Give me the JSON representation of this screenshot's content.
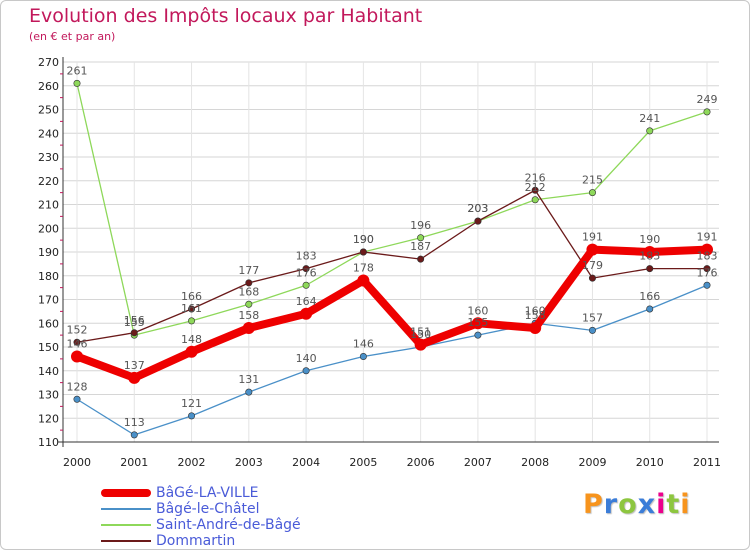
{
  "header": {
    "title": "Evolution des Impôts locaux par Habitant",
    "subtitle": "(en € et par an)"
  },
  "chart_data": {
    "type": "line",
    "title": "Evolution des Impôts locaux par Habitant",
    "subtitle": "(en € et par an)",
    "xlabel": "",
    "ylabel": "",
    "ylim": [
      110,
      270
    ],
    "yticks": [
      110,
      120,
      130,
      140,
      150,
      160,
      170,
      180,
      190,
      200,
      210,
      220,
      230,
      240,
      250,
      260,
      270
    ],
    "categories": [
      "2000",
      "2001",
      "2002",
      "2003",
      "2004",
      "2005",
      "2006",
      "2007",
      "2008",
      "2009",
      "2010",
      "2011"
    ],
    "grid": true,
    "legend_position": "bottom-left",
    "series": [
      {
        "name": "Bâgé-le-Châtel",
        "color": "#4a90c8",
        "values": [
          128,
          113,
          121,
          131,
          140,
          146,
          150,
          155,
          160,
          157,
          166,
          176
        ]
      },
      {
        "name": "Saint-André-de-Bâgé",
        "color": "#8ed85a",
        "values": [
          261,
          155,
          161,
          168,
          176,
          190,
          196,
          203,
          212,
          215,
          241,
          249
        ]
      },
      {
        "name": "Dommartin",
        "color": "#6b1a1a",
        "values": [
          152,
          156,
          166,
          177,
          183,
          190,
          187,
          203,
          216,
          179,
          183,
          183
        ]
      },
      {
        "name": "BâGé-LA-VILLE",
        "color": "#ee0000",
        "values": [
          146,
          137,
          148,
          158,
          164,
          178,
          151,
          160,
          158,
          191,
          190,
          191
        ]
      }
    ]
  },
  "legend": {
    "items": [
      {
        "label": "BâGé-LA-VILLE",
        "color": "#ee0000"
      },
      {
        "label": "Bâgé-le-Châtel",
        "color": "#4a90c8"
      },
      {
        "label": "Saint-André-de-Bâgé",
        "color": "#8ed85a"
      },
      {
        "label": "Dommartin",
        "color": "#6b1a1a"
      }
    ]
  },
  "logo": {
    "letters": [
      "P",
      "r",
      "o",
      "x",
      "i",
      "t",
      "i"
    ],
    "colors": [
      "#f7941d",
      "#3b7dd8",
      "#8dc63f",
      "#3b7dd8",
      "#ec008c",
      "#8dc63f",
      "#f7941d"
    ]
  }
}
